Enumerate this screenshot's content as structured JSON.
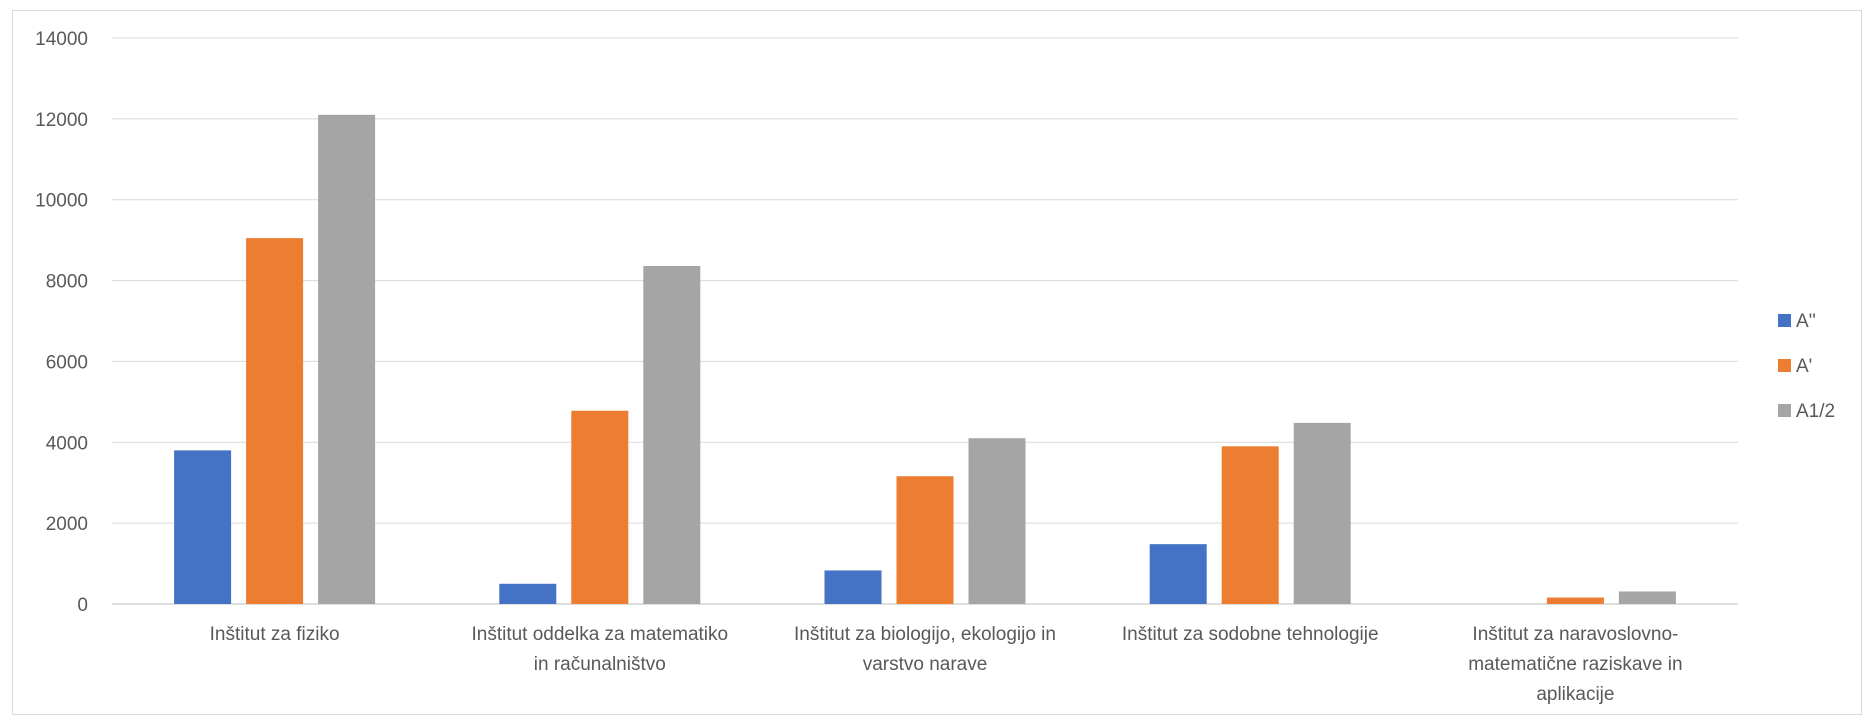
{
  "chart_data": {
    "type": "bar",
    "title": "",
    "xlabel": "",
    "ylabel": "",
    "ylim": [
      0,
      14000
    ],
    "yticks": [
      0,
      2000,
      4000,
      6000,
      8000,
      10000,
      12000,
      14000
    ],
    "grid": true,
    "legend_position": "right",
    "categories": [
      [
        "Inštitut za fiziko"
      ],
      [
        "Inštitut oddelka za matematiko",
        "in računalništvo"
      ],
      [
        "Inštitut za biologijo, ekologijo in",
        "varstvo narave"
      ],
      [
        "Inštitut za sodobne tehnologije"
      ],
      [
        "Inštitut za naravoslovno-",
        "matematične raziskave in",
        "aplikacije"
      ]
    ],
    "series": [
      {
        "name": "A''",
        "color": "#4472c4",
        "values": [
          3800,
          500,
          830,
          1480,
          0
        ]
      },
      {
        "name": "A'",
        "color": "#ed7d31",
        "values": [
          9050,
          4780,
          3160,
          3900,
          160
        ]
      },
      {
        "name": "A1/2",
        "color": "#a5a5a5",
        "values": [
          12100,
          8360,
          4100,
          4480,
          310
        ]
      }
    ]
  }
}
